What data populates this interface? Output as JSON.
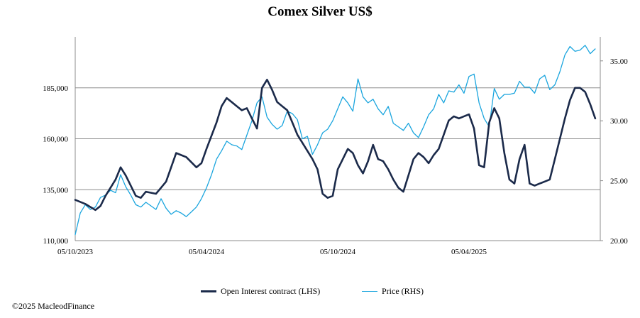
{
  "chart_data": {
    "type": "line",
    "title": "Comex Silver US$",
    "x_tick_labels": [
      "05/10/2023",
      "05/04/2024",
      "05/10/2024",
      "05/04/2025"
    ],
    "left_axis": {
      "label": "Open Interest contract (LHS)",
      "ylim": [
        110000,
        210000
      ],
      "ticks": [
        "110,000",
        "135,000",
        "160,000",
        "185,000"
      ],
      "tick_values": [
        110000,
        135000,
        160000,
        185000
      ]
    },
    "right_axis": {
      "label": "Price (RHS)",
      "ylim": [
        20,
        37
      ],
      "ticks": [
        "20.00",
        "25.00",
        "30.00",
        "35.00"
      ],
      "tick_values": [
        20,
        25,
        30,
        35
      ]
    },
    "x_range": [
      0,
      104
    ],
    "series": [
      {
        "name": "Open Interest contract (LHS)",
        "axis": "left",
        "color": "#1b2a4a",
        "x": [
          0,
          2,
          4,
          5,
          6,
          8,
          9,
          10,
          12,
          13,
          14,
          16,
          17,
          18,
          20,
          21,
          22,
          24,
          25,
          26,
          28,
          29,
          30,
          31,
          32,
          33,
          34,
          35,
          36,
          37,
          38,
          39,
          40,
          41,
          42,
          43,
          44,
          45,
          46,
          47,
          48,
          49,
          50,
          51,
          52,
          53,
          54,
          55,
          56,
          57,
          58,
          59,
          60,
          61,
          62,
          63,
          64,
          65,
          66,
          67,
          68,
          69,
          70,
          71,
          72,
          73,
          74,
          75,
          76,
          77,
          78,
          79,
          80,
          81,
          82,
          83,
          84,
          85,
          86,
          87,
          88,
          89,
          90,
          91,
          92,
          93,
          94,
          95,
          96,
          97,
          98,
          99,
          100,
          101,
          102,
          103
        ],
        "values": [
          130000,
          128000,
          125000,
          127000,
          132000,
          140000,
          146000,
          142000,
          132000,
          131000,
          134000,
          133000,
          136000,
          139000,
          153000,
          152000,
          151000,
          146000,
          148000,
          155000,
          168000,
          176000,
          180000,
          178000,
          176000,
          174000,
          175000,
          170000,
          165000,
          185000,
          189000,
          184000,
          178000,
          176000,
          174000,
          168000,
          162000,
          158000,
          154000,
          150000,
          145000,
          133000,
          131000,
          132000,
          145000,
          150000,
          155000,
          153000,
          147000,
          143000,
          149000,
          157000,
          150000,
          149000,
          145000,
          140000,
          136000,
          134000,
          142000,
          150000,
          153000,
          151000,
          148000,
          152000,
          155000,
          162000,
          169000,
          171000,
          170000,
          171000,
          172000,
          165000,
          147000,
          146000,
          168000,
          175000,
          170000,
          153000,
          140000,
          138000,
          150000,
          157000,
          138000,
          137000,
          138000,
          139000,
          140000,
          150000,
          160000,
          170000,
          179000,
          185000,
          185000,
          183000,
          177000,
          170000
        ]
      },
      {
        "name": "Price (RHS)",
        "axis": "right",
        "color": "#1aa5de",
        "x": [
          0,
          1,
          2,
          3,
          4,
          5,
          6,
          7,
          8,
          9,
          10,
          11,
          12,
          13,
          14,
          15,
          16,
          17,
          18,
          19,
          20,
          21,
          22,
          23,
          24,
          25,
          26,
          27,
          28,
          29,
          30,
          31,
          32,
          33,
          34,
          35,
          36,
          37,
          38,
          39,
          40,
          41,
          42,
          43,
          44,
          45,
          46,
          47,
          48,
          49,
          50,
          51,
          52,
          53,
          54,
          55,
          56,
          57,
          58,
          59,
          60,
          61,
          62,
          63,
          64,
          65,
          66,
          67,
          68,
          69,
          70,
          71,
          72,
          73,
          74,
          75,
          76,
          77,
          78,
          79,
          80,
          81,
          82,
          83,
          84,
          85,
          86,
          87,
          88,
          89,
          90,
          91,
          92,
          93,
          94,
          95,
          96,
          97,
          98,
          99,
          100,
          101,
          102,
          103
        ],
        "values": [
          20.5,
          22.3,
          23.0,
          22.6,
          22.8,
          23.6,
          23.8,
          24.2,
          24.0,
          25.5,
          24.5,
          23.8,
          23.0,
          22.8,
          23.2,
          22.9,
          22.6,
          23.5,
          22.7,
          22.2,
          22.5,
          22.3,
          22.0,
          22.4,
          22.8,
          23.5,
          24.4,
          25.5,
          26.8,
          27.5,
          28.3,
          28.0,
          27.9,
          27.6,
          28.8,
          30.0,
          31.5,
          32.0,
          30.3,
          29.7,
          29.3,
          29.6,
          30.8,
          30.6,
          30.1,
          28.5,
          28.7,
          27.2,
          28.0,
          29.0,
          29.3,
          30.0,
          31.0,
          32.0,
          31.5,
          30.8,
          33.5,
          32.0,
          31.5,
          31.8,
          31.0,
          30.5,
          31.2,
          29.8,
          29.5,
          29.2,
          29.8,
          29.0,
          28.6,
          29.5,
          30.5,
          31.0,
          32.2,
          31.5,
          32.5,
          32.4,
          33.0,
          32.3,
          33.7,
          33.9,
          31.5,
          30.2,
          29.5,
          32.7,
          31.8,
          32.2,
          32.2,
          32.3,
          33.3,
          32.8,
          32.8,
          32.3,
          33.5,
          33.8,
          32.6,
          33.0,
          34.1,
          35.5,
          36.2,
          35.8,
          35.9,
          36.3,
          35.6,
          36.0
        ]
      }
    ],
    "legend": {
      "placement": "bottom-center"
    },
    "grid": {
      "horizontal": true
    }
  },
  "footer": {
    "copyright": "©2025 MacleodFinance"
  }
}
